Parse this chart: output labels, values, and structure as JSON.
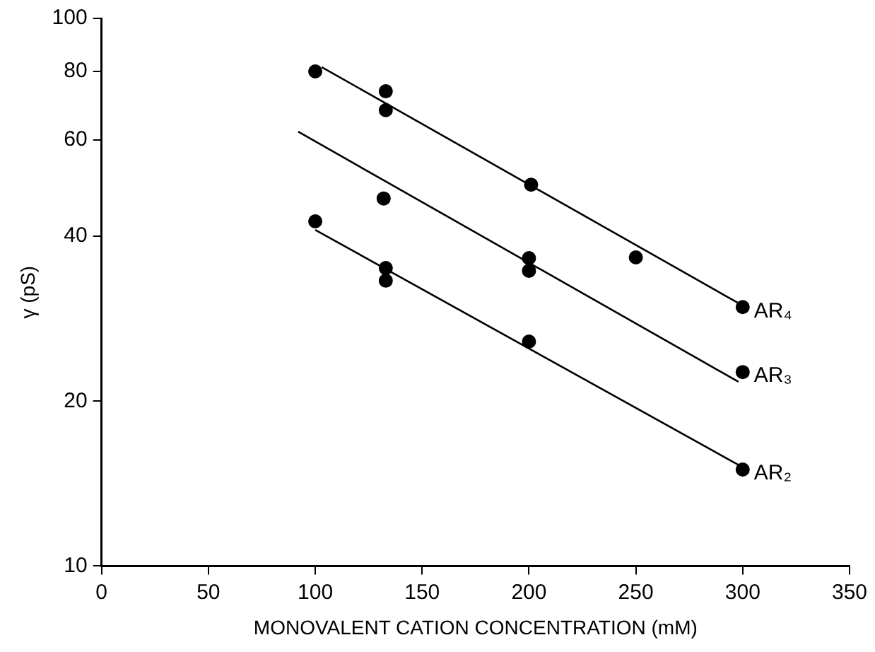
{
  "chart_data": {
    "type": "scatter",
    "xlabel": "MONOVALENT CATION CONCENTRATION (mM)",
    "ylabel": "γ (pS)",
    "log": "y",
    "grid": false,
    "legend": false,
    "marker": "circle",
    "xlim": [
      0,
      350
    ],
    "xticks": [
      0,
      50,
      100,
      150,
      200,
      250,
      300,
      350
    ],
    "ylim": [
      10,
      100
    ],
    "yticks": [
      10,
      20,
      40,
      60,
      80,
      100
    ],
    "series": [
      {
        "name": "AR₄",
        "color": "#000000",
        "x": [
          100,
          133,
          133,
          201,
          250,
          300
        ],
        "values": [
          80,
          73.6,
          68,
          49.7,
          36.6,
          29.7
        ]
      },
      {
        "name": "AR₃",
        "color": "#000000",
        "x": [
          132,
          200,
          200,
          300
        ],
        "values": [
          46.9,
          36.5,
          34.6,
          22.6
        ]
      },
      {
        "name": "AR₂",
        "color": "#000000",
        "x": [
          100,
          133,
          133,
          200,
          300
        ],
        "values": [
          42.6,
          35,
          33.2,
          25.7,
          15
        ]
      },
      {
        "type": "line",
        "color": "#000000",
        "marker": "none",
        "line_style": "solid",
        "x": [
          103,
          298
        ],
        "values": [
          81.5,
          30.2
        ]
      },
      {
        "type": "line",
        "color": "#000000",
        "marker": "none",
        "line_style": "solid",
        "x": [
          92,
          298
        ],
        "values": [
          62.1,
          21.7
        ]
      },
      {
        "type": "line",
        "color": "#000000",
        "marker": "none",
        "line_style": "solid",
        "x": [
          100,
          298
        ],
        "values": [
          41.1,
          15.3
        ]
      }
    ]
  }
}
